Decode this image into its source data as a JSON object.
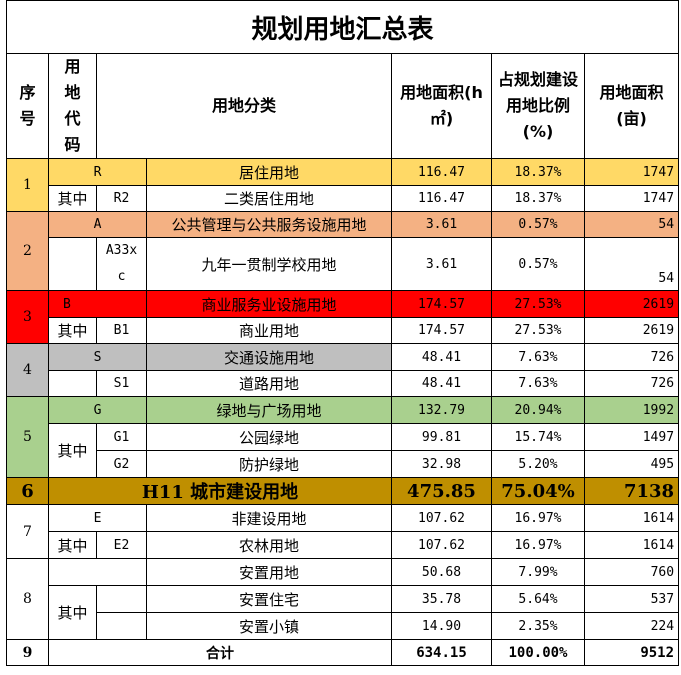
{
  "title": "规划用地汇总表",
  "headers": {
    "seq": "序号",
    "code": "用地代码",
    "category": "用地分类",
    "area_ha": "用地面积(h㎡)",
    "ratio": "占规划建设用地比例(%)",
    "area_mu": "用地面积(亩)"
  },
  "colors": {
    "residential": "#FFD966",
    "public": "#F4B183",
    "commercial": "#FF0000",
    "transport": "#BFBFBF",
    "green": "#A9D08E",
    "total": "#BF8F00"
  },
  "groups": [
    {
      "seq": "1",
      "code": "R",
      "name": "居住用地",
      "area": "116.47",
      "ratio": "18.37%",
      "mu": "1747",
      "sub": [
        {
          "label": "其中",
          "code": "R2",
          "name": "二类居住用地",
          "area": "116.47",
          "ratio": "18.37%",
          "mu": "1747"
        }
      ]
    },
    {
      "seq": "2",
      "code": "A",
      "name": "公共管理与公共服务设施用地",
      "area": "3.61",
      "ratio": "0.57%",
      "mu": "54",
      "sub": [
        {
          "label": "",
          "code": "A33x c",
          "name": "九年一贯制学校用地",
          "area": "3.61",
          "ratio": "0.57%",
          "mu": "54"
        }
      ]
    },
    {
      "seq": "3",
      "code": "B",
      "name": "商业服务业设施用地",
      "area": "174.57",
      "ratio": "27.53%",
      "mu": "2619",
      "sub": [
        {
          "label": "其中",
          "code": "B1",
          "name": "商业用地",
          "area": "174.57",
          "ratio": "27.53%",
          "mu": "2619"
        }
      ]
    },
    {
      "seq": "4",
      "code": "S",
      "name": "交通设施用地",
      "area": "48.41",
      "ratio": "7.63%",
      "mu": "726",
      "sub": [
        {
          "label": "",
          "code": "S1",
          "name": "道路用地",
          "area": "48.41",
          "ratio": "7.63%",
          "mu": "726"
        }
      ]
    },
    {
      "seq": "5",
      "code": "G",
      "name": "绿地与广场用地",
      "area": "132.79",
      "ratio": "20.94%",
      "mu": "1992",
      "sub": [
        {
          "label": "其中",
          "code": "G1",
          "name": "公园绿地",
          "area": "99.81",
          "ratio": "15.74%",
          "mu": "1497"
        },
        {
          "label": "",
          "code": "G2",
          "name": "防护绿地",
          "area": "32.98",
          "ratio": "5.20%",
          "mu": "495"
        }
      ]
    }
  ],
  "total": {
    "seq": "6",
    "name": "H11  城市建设用地",
    "area": "475.85",
    "ratio": "75.04%",
    "mu": "7138"
  },
  "group7": {
    "seq": "7",
    "code": "E",
    "name": "非建设用地",
    "area": "107.62",
    "ratio": "16.97%",
    "mu": "1614",
    "sub": [
      {
        "label": "其中",
        "code": "E2",
        "name": "农林用地",
        "area": "107.62",
        "ratio": "16.97%",
        "mu": "1614"
      }
    ]
  },
  "group8": {
    "seq": "8",
    "label": "其中",
    "rows": [
      {
        "name": "安置用地",
        "area": "50.68",
        "ratio": "7.99%",
        "mu": "760"
      },
      {
        "name": "安置住宅",
        "area": "35.78",
        "ratio": "5.64%",
        "mu": "537"
      },
      {
        "name": "安置小镇",
        "area": "14.90",
        "ratio": "2.35%",
        "mu": "224"
      }
    ]
  },
  "grand": {
    "seq": "9",
    "name": "合计",
    "area": "634.15",
    "ratio": "100.00%",
    "mu": "9512"
  }
}
